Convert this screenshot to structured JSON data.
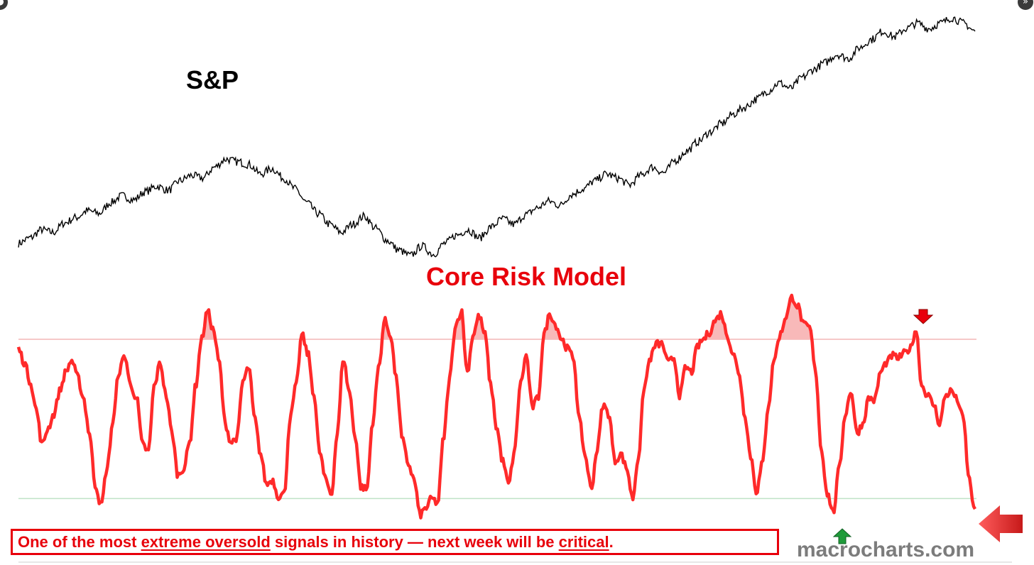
{
  "chart_data": [
    {
      "type": "line",
      "title": "S&P",
      "series": [
        {
          "color": "#000000",
          "values": [
            100,
            104,
            110,
            108,
            115,
            119,
            124,
            122,
            130,
            135,
            132,
            138,
            142,
            139,
            146,
            150,
            148,
            156,
            162,
            160,
            158,
            151,
            155,
            148,
            140,
            130,
            122,
            114,
            108,
            114,
            120,
            111,
            102,
            95,
            91,
            98,
            92,
            100,
            106,
            110,
            104,
            112,
            118,
            114,
            121,
            126,
            131,
            128,
            136,
            140,
            146,
            151,
            148,
            143,
            150,
            156,
            152,
            161,
            168,
            175,
            182,
            188,
            195,
            200,
            206,
            212,
            218,
            214,
            222,
            228,
            233,
            239,
            236,
            244,
            250,
            256,
            252,
            258,
            262,
            258,
            262,
            266,
            262,
            256
          ]
        }
      ]
    },
    {
      "type": "line",
      "title": "Core Risk Model",
      "ylim": [
        0,
        100
      ],
      "upper_threshold": 80,
      "lower_threshold": 12,
      "series": [
        {
          "color": "#ff2a2a",
          "values": [
            76,
            70,
            62,
            50,
            35,
            42,
            48,
            58,
            66,
            71,
            64,
            55,
            40,
            18,
            9,
            25,
            45,
            66,
            73,
            60,
            55,
            35,
            32,
            60,
            70,
            56,
            40,
            22,
            25,
            36,
            60,
            80,
            92,
            84,
            70,
            44,
            36,
            38,
            62,
            68,
            46,
            31,
            18,
            20,
            13,
            14,
            46,
            60,
            82,
            74,
            57,
            32,
            20,
            14,
            40,
            72,
            58,
            39,
            17,
            16,
            45,
            68,
            88,
            82,
            63,
            37,
            27,
            20,
            5,
            8,
            12,
            10,
            38,
            63,
            86,
            92,
            66,
            82,
            90,
            82,
            60,
            42,
            28,
            18,
            32,
            61,
            73,
            51,
            55,
            82,
            91,
            86,
            80,
            76,
            72,
            45,
            30,
            16,
            33,
            52,
            48,
            28,
            31,
            25,
            12,
            30,
            60,
            72,
            78,
            78,
            70,
            72,
            56,
            68,
            66,
            77,
            80,
            83,
            88,
            91,
            82,
            74,
            66,
            48,
            30,
            15,
            27,
            52,
            72,
            82,
            90,
            98,
            94,
            86,
            85,
            66,
            32,
            14,
            6,
            25,
            48,
            58,
            40,
            44,
            55,
            54,
            66,
            70,
            73,
            72,
            74,
            76,
            84,
            60,
            56,
            52,
            44,
            56,
            58,
            54,
            46,
            20,
            6
          ]
        }
      ],
      "annotations": [
        "sell-signal-arrow",
        "buy-signal-arrow",
        "current-reading-arrow"
      ]
    }
  ],
  "caption": {
    "p1": "One of the most ",
    "u1": "extreme oversold",
    "p2": " signals in history — next week will be ",
    "u2": "critical",
    "p3": "."
  },
  "watermark": "macrocharts.com",
  "colors": {
    "accent": "#e8000b",
    "line": "#ff2a2a",
    "fill": "#f8b9b9",
    "upper_band": "#f4b6b6",
    "lower_band": "#bfe3c7",
    "buy_arrow": "#1f9b3a",
    "sell_arrow": "#e8000b"
  },
  "icons": {
    "left_corner": "dot",
    "right_corner": "double-chevron-right-icon"
  }
}
